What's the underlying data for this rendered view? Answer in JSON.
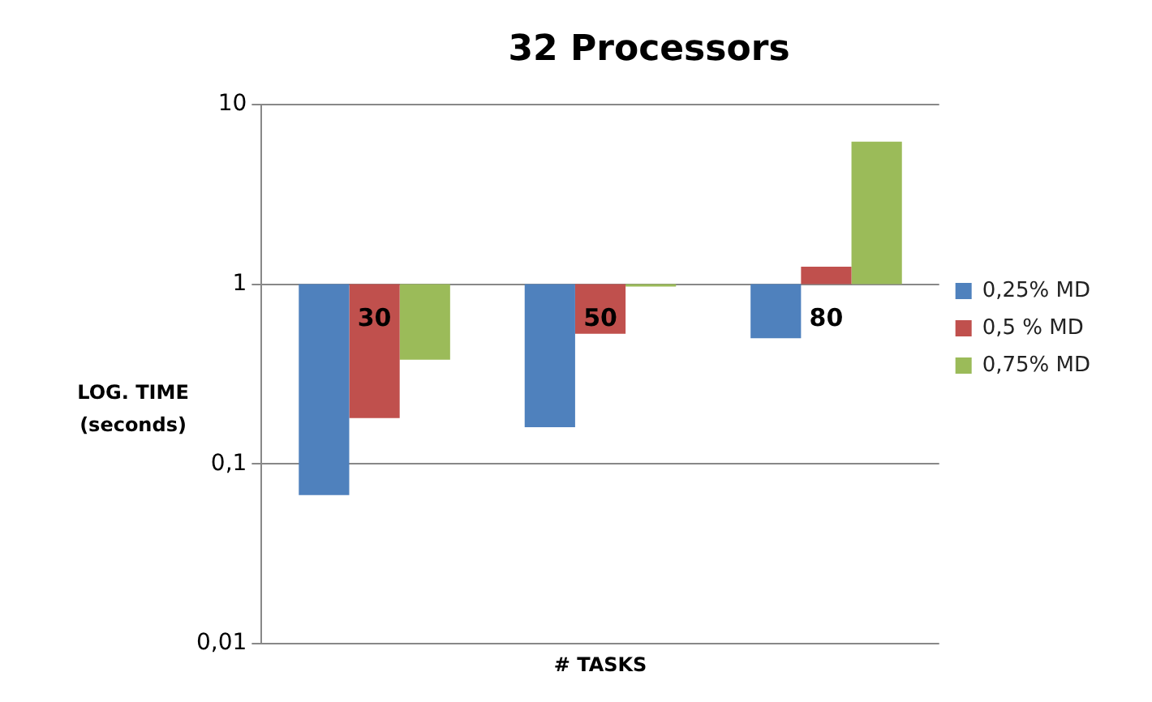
{
  "chart_data": {
    "type": "bar",
    "title": "32 Processors",
    "xlabel": "# TASKS",
    "ylabel": "LOG. TIME\n(seconds)",
    "categories": [
      "30",
      "50",
      "80"
    ],
    "series": [
      {
        "name": "0,25% MD",
        "color": "#4f81bd",
        "base": [
          1,
          1,
          1
        ],
        "values": [
          -0.933,
          -0.84,
          -0.5
        ]
      },
      {
        "name": "0,5 % MD",
        "color": "#c0504d",
        "base": [
          1,
          1,
          1
        ],
        "values": [
          -0.82,
          -0.47,
          0.25
        ]
      },
      {
        "name": "0,75% MD",
        "color": "#9bbb59",
        "base": [
          1,
          1,
          1
        ],
        "values": [
          -0.62,
          -0.03,
          5.2
        ]
      }
    ],
    "log": true,
    "ylim": [
      0.01,
      10
    ],
    "yticks": [
      {
        "value": 0.01,
        "label": "0,01"
      },
      {
        "value": 0.1,
        "label": "0,1"
      },
      1,
      10
    ],
    "grid": "y",
    "legend": "right"
  }
}
